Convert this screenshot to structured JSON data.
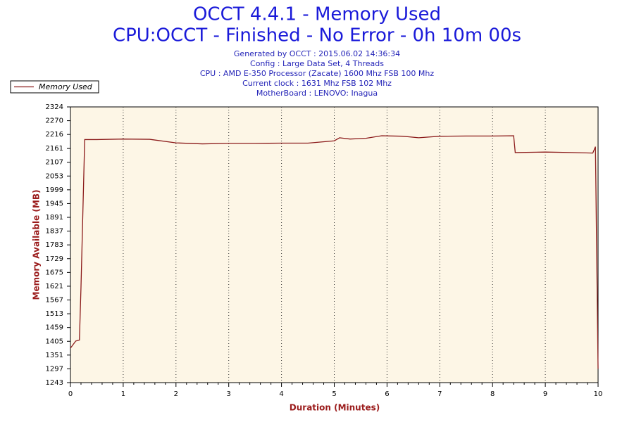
{
  "chart_data": {
    "type": "line",
    "title": "OCCT 4.4.1 - Memory Used",
    "subtitle": "CPU:OCCT - Finished - No Error - 0h 10m 00s",
    "info": [
      "Generated by OCCT : 2015.06.02 14:36:34",
      "Config : Large Data Set, 4 Threads",
      "CPU : AMD E-350 Processor (Zacate) 1600 Mhz FSB 100 Mhz",
      "Current clock : 1631 Mhz FSB 102 Mhz",
      "MotherBoard : LENOVO: Inagua"
    ],
    "x_label": "Duration (Minutes)",
    "y_label": "Memory Available (MB)",
    "x": [
      0,
      0.1,
      0.17,
      0.2,
      0.27,
      0.5,
      1.0,
      1.5,
      2.0,
      2.5,
      3.0,
      3.5,
      4.0,
      4.5,
      5.0,
      5.1,
      5.3,
      5.6,
      5.9,
      6.3,
      6.6,
      7.0,
      7.5,
      8.0,
      8.4,
      8.43,
      9.0,
      9.5,
      9.9,
      9.95,
      10
    ],
    "series": [
      {
        "name": "Memory Used",
        "color": "#8b1a1a",
        "values": [
          1378,
          1406,
          1410,
          1618,
          2196,
          2196,
          2198,
          2197,
          2183,
          2179,
          2181,
          2181,
          2182,
          2182,
          2191,
          2203,
          2198,
          2201,
          2211,
          2209,
          2203,
          2209,
          2210,
          2210,
          2211,
          2145,
          2147,
          2145,
          2143,
          2168,
          1297
        ]
      }
    ],
    "xlim": [
      0,
      10
    ],
    "xticks": [
      0,
      1,
      2,
      3,
      4,
      5,
      6,
      7,
      8,
      9,
      10
    ],
    "ylim": [
      1243,
      2324
    ],
    "yticks": [
      1243,
      1297,
      1351,
      1405,
      1459,
      1513,
      1567,
      1621,
      1675,
      1729,
      1783,
      1837,
      1891,
      1945,
      1999,
      2053,
      2107,
      2161,
      2216,
      2270,
      2324
    ],
    "grid": true,
    "legend": "top-left"
  }
}
